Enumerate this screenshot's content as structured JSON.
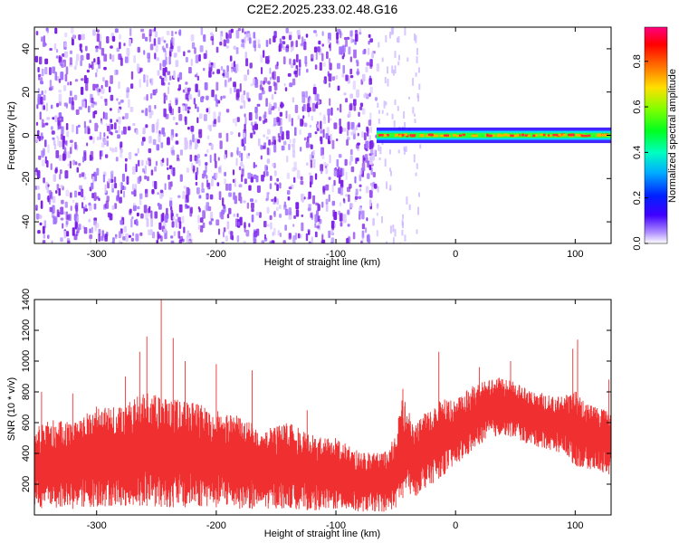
{
  "title": "C2E2.2025.233.02.48.G16",
  "chart_data": [
    {
      "type": "heatmap",
      "xlabel": "Height of straight line (km)",
      "ylabel": "Frequency (Hz)",
      "xlim": [
        -352,
        130
      ],
      "ylim": [
        -50,
        50
      ],
      "x_ticks": [
        -300,
        -200,
        -100,
        0,
        100
      ],
      "x_tick_labels": [
        "-300",
        "-200",
        "-100",
        "0",
        "100"
      ],
      "y_ticks": [
        -40,
        -20,
        0,
        20,
        40
      ],
      "y_tick_labels": [
        "-40",
        "-20",
        "0",
        "20",
        "40"
      ],
      "colorbar": {
        "label": "Normalized spectral amplitude",
        "range": [
          0,
          0.95
        ],
        "ticks": [
          0.0,
          0.2,
          0.4,
          0.6,
          0.8
        ],
        "tick_labels": [
          "0.0",
          "0.2",
          "0.4",
          "0.6",
          "0.8"
        ],
        "colormap": "rainbow"
      },
      "regions": [
        {
          "x_range": [
            -352,
            -66
          ],
          "y_range": [
            -50,
            50
          ],
          "description": "broadband noise",
          "amplitude_range": [
            0.0,
            0.2
          ]
        },
        {
          "x_range": [
            -66,
            130
          ],
          "y_center": 0,
          "half_width": 3,
          "description": "narrow carrier line",
          "amplitude_range": [
            0.4,
            0.9
          ]
        }
      ],
      "color_noise": "#7a1fe6",
      "color_peak": "#ff3030"
    },
    {
      "type": "line",
      "xlabel": "Height of straight line (km)",
      "ylabel": "SNR (10 * v/v)",
      "xlim": [
        -352,
        130
      ],
      "ylim": [
        0,
        1400
      ],
      "x_ticks": [
        -300,
        -200,
        -100,
        0,
        100
      ],
      "x_tick_labels": [
        "-300",
        "-200",
        "-100",
        "0",
        "100"
      ],
      "y_ticks": [
        200,
        400,
        600,
        800,
        1000,
        1200,
        1400
      ],
      "y_tick_labels": [
        "200",
        "400",
        "600",
        "800",
        "1000",
        "1200",
        "1400"
      ],
      "color": "#f03030",
      "envelope": {
        "x": [
          -352,
          -340,
          -320,
          -300,
          -280,
          -260,
          -240,
          -220,
          -200,
          -180,
          -160,
          -140,
          -120,
          -100,
          -80,
          -60,
          -50,
          -45,
          -40,
          -35,
          -30,
          -20,
          -10,
          0,
          10,
          20,
          30,
          40,
          50,
          60,
          70,
          80,
          90,
          100,
          110,
          120,
          130
        ],
        "upper": [
          560,
          620,
          600,
          720,
          700,
          800,
          760,
          740,
          680,
          640,
          560,
          600,
          520,
          500,
          420,
          400,
          520,
          780,
          700,
          560,
          640,
          700,
          760,
          740,
          820,
          860,
          880,
          900,
          860,
          820,
          800,
          780,
          780,
          820,
          720,
          700,
          680
        ],
        "lower": [
          40,
          50,
          40,
          50,
          60,
          60,
          50,
          50,
          50,
          40,
          40,
          40,
          30,
          30,
          20,
          20,
          40,
          100,
          150,
          100,
          150,
          200,
          260,
          320,
          380,
          460,
          500,
          520,
          500,
          460,
          440,
          420,
          400,
          320,
          300,
          280,
          260
        ]
      },
      "spikes": [
        {
          "x": -346,
          "y": 800
        },
        {
          "x": -320,
          "y": 790
        },
        {
          "x": -276,
          "y": 900
        },
        {
          "x": -264,
          "y": 1060
        },
        {
          "x": -258,
          "y": 1160
        },
        {
          "x": -246,
          "y": 1400
        },
        {
          "x": -236,
          "y": 1150
        },
        {
          "x": -226,
          "y": 1000
        },
        {
          "x": -200,
          "y": 980
        },
        {
          "x": -170,
          "y": 940
        },
        {
          "x": -124,
          "y": 680
        },
        {
          "x": -44,
          "y": 820
        },
        {
          "x": -14,
          "y": 1060
        },
        {
          "x": 20,
          "y": 960
        },
        {
          "x": 46,
          "y": 1000
        },
        {
          "x": 98,
          "y": 1080
        },
        {
          "x": 102,
          "y": 1140
        },
        {
          "x": 128,
          "y": 880
        }
      ]
    }
  ]
}
